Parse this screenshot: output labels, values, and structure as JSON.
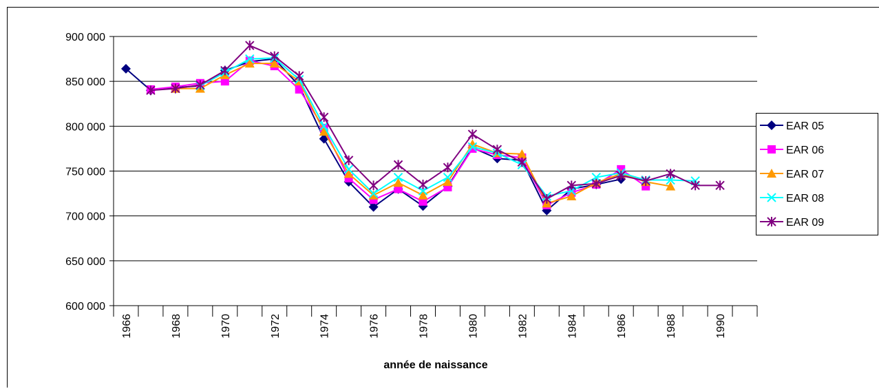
{
  "chart_data": {
    "type": "line",
    "xlabel": "année de naissance",
    "categories": [
      "1966",
      null,
      "1968",
      null,
      "1970",
      null,
      "1972",
      null,
      "1974",
      null,
      "1976",
      null,
      "1978",
      null,
      "1980",
      null,
      "1982",
      null,
      "1984",
      null,
      "1986",
      null,
      "1988",
      null,
      "1990",
      null
    ],
    "ylim": [
      600000,
      900000
    ],
    "yticks": [
      {
        "value": 600000,
        "label": "600 000"
      },
      {
        "value": 650000,
        "label": "650 000"
      },
      {
        "value": 700000,
        "label": "700 000"
      },
      {
        "value": 750000,
        "label": "750 000"
      },
      {
        "value": 800000,
        "label": "800 000"
      },
      {
        "value": 850000,
        "label": "850 000"
      },
      {
        "value": 900000,
        "label": "900 000"
      }
    ],
    "grid": true,
    "legend": "right",
    "series": [
      {
        "name": "EAR 05",
        "color": "#000080",
        "marker": "diamond",
        "values": [
          864000,
          840000,
          843000,
          845000,
          862000,
          872000,
          875000,
          845000,
          786000,
          738000,
          710000,
          730000,
          711000,
          733000,
          776000,
          764000,
          762000,
          706000,
          730000,
          735000,
          741000,
          null,
          null,
          null,
          null,
          null
        ]
      },
      {
        "name": "EAR 06",
        "color": "#ff00ff",
        "marker": "square",
        "values": [
          null,
          841000,
          844000,
          848000,
          850000,
          873000,
          867000,
          841000,
          798000,
          742000,
          718000,
          730000,
          716000,
          732000,
          775000,
          768000,
          765000,
          712000,
          726000,
          735000,
          752000,
          733000,
          null,
          null,
          null,
          null
        ]
      },
      {
        "name": "EAR 07",
        "color": "#ff9900",
        "marker": "triangle",
        "values": [
          null,
          null,
          842000,
          842000,
          857000,
          870000,
          870000,
          850000,
          794000,
          747000,
          723000,
          737000,
          723000,
          738000,
          780000,
          770000,
          769000,
          714000,
          722000,
          737000,
          747000,
          738000,
          733000,
          null,
          null,
          null
        ]
      },
      {
        "name": "EAR 08",
        "color": "#00ffff",
        "marker": "x",
        "values": [
          null,
          null,
          null,
          845000,
          860000,
          875000,
          876000,
          852000,
          800000,
          752000,
          725000,
          743000,
          728000,
          743000,
          777000,
          770000,
          757000,
          722000,
          728000,
          743000,
          748000,
          740000,
          740000,
          739000,
          null,
          null
        ]
      },
      {
        "name": "EAR 09",
        "color": "#800080",
        "marker": "star",
        "values": [
          null,
          840000,
          842000,
          846000,
          862000,
          890000,
          878000,
          856000,
          810000,
          762000,
          734000,
          757000,
          735000,
          754000,
          791000,
          774000,
          760000,
          719000,
          734000,
          736000,
          745000,
          739000,
          747000,
          734000,
          734000,
          null
        ]
      }
    ]
  }
}
